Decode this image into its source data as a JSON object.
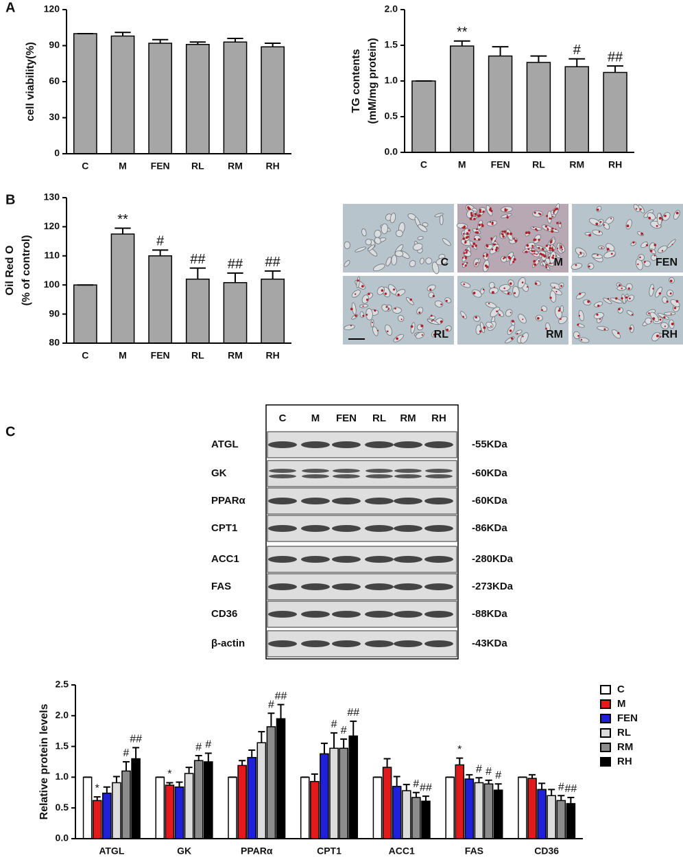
{
  "panels": [
    "A",
    "B",
    "C"
  ],
  "chart_data": [
    {
      "type": "bar",
      "ylabel": [
        "cell viability(%)"
      ],
      "categories": [
        "C",
        "M",
        "FEN",
        "RL",
        "RM",
        "RH"
      ],
      "values": [
        100,
        98,
        92,
        91,
        93,
        89
      ],
      "errors": [
        0,
        3,
        3,
        2,
        3,
        3
      ],
      "color": "#a6a6a6",
      "ylim": [
        0,
        120
      ],
      "yticks": [
        0,
        30,
        60,
        90,
        120
      ]
    },
    {
      "type": "bar",
      "ylabel": [
        "TG contents",
        "(mM/mg protein)"
      ],
      "categories": [
        "C",
        "M",
        "FEN",
        "RL",
        "RM",
        "RH"
      ],
      "values": [
        1.0,
        1.49,
        1.35,
        1.26,
        1.2,
        1.12
      ],
      "errors": [
        0,
        0.07,
        0.13,
        0.09,
        0.11,
        0.09
      ],
      "significance": [
        null,
        "**",
        null,
        null,
        "#",
        "##"
      ],
      "color": "#a6a6a6",
      "ylim": [
        0,
        2
      ],
      "yticks": [
        {
          "value": 0,
          "label": "0.0"
        },
        0.5,
        {
          "value": 1,
          "label": "1.0"
        },
        1.5,
        {
          "value": 2,
          "label": "2.0"
        }
      ]
    },
    {
      "type": "bar",
      "ylabel": [
        "Oil Red O",
        "(% of control)"
      ],
      "categories": [
        "C",
        "M",
        "FEN",
        "RL",
        "RM",
        "RH"
      ],
      "values": [
        100,
        117.5,
        110,
        102,
        100.8,
        102
      ],
      "errors": [
        0,
        2,
        2,
        3.8,
        3.3,
        2.8
      ],
      "significance": [
        null,
        "**",
        "#",
        "##",
        "##",
        "##"
      ],
      "color": "#a6a6a6",
      "ylim": [
        80,
        130
      ],
      "yticks": [
        80,
        90,
        100,
        110,
        120,
        130
      ]
    },
    {
      "type": "bar",
      "ylabel": [
        "Relative protein levels"
      ],
      "categories": [
        "ATGL",
        "GK",
        "PPARα",
        "CPT1",
        "ACC1",
        "FAS",
        "CD36"
      ],
      "series": [
        {
          "name": "C",
          "color": "#ffffff",
          "values": [
            1,
            1,
            1,
            1,
            1,
            1,
            1
          ],
          "errors": [
            0,
            0,
            0,
            0,
            0,
            0,
            0
          ],
          "significance": [
            null,
            null,
            null,
            null,
            null,
            null,
            null
          ]
        },
        {
          "name": "M",
          "color": "#e31a1c",
          "values": [
            0.62,
            0.87,
            1.19,
            0.93,
            1.16,
            1.2,
            0.98
          ],
          "errors": [
            0.06,
            0.04,
            0.08,
            0.12,
            0.14,
            0.11,
            0.06
          ],
          "significance": [
            "*",
            "*",
            null,
            null,
            null,
            "*",
            null
          ]
        },
        {
          "name": "FEN",
          "color": "#2020d8",
          "values": [
            0.74,
            0.84,
            1.32,
            1.38,
            0.85,
            0.97,
            0.8
          ],
          "errors": [
            0.1,
            0.08,
            0.12,
            0.17,
            0.16,
            0.07,
            0.1
          ],
          "significance": [
            null,
            null,
            null,
            null,
            null,
            null,
            null
          ]
        },
        {
          "name": "RL",
          "color": "#dcdcdc",
          "values": [
            0.91,
            1.06,
            1.56,
            1.47,
            0.78,
            0.91,
            0.7
          ],
          "errors": [
            0.1,
            0.1,
            0.18,
            0.25,
            0.1,
            0.08,
            0.1
          ],
          "significance": [
            null,
            null,
            null,
            "#",
            null,
            "#",
            null
          ]
        },
        {
          "name": "RM",
          "color": "#8c8c8c",
          "values": [
            1.1,
            1.27,
            1.82,
            1.47,
            0.67,
            0.89,
            0.62
          ],
          "errors": [
            0.15,
            0.08,
            0.22,
            0.15,
            0.08,
            0.06,
            0.08
          ],
          "significance": [
            "#",
            "#",
            "#",
            "#",
            "#",
            "#",
            "#"
          ]
        },
        {
          "name": "RH",
          "color": "#000000",
          "values": [
            1.3,
            1.25,
            1.95,
            1.67,
            0.61,
            0.79,
            0.57
          ],
          "errors": [
            0.18,
            0.14,
            0.23,
            0.24,
            0.08,
            0.1,
            0.1
          ],
          "significance": [
            "##",
            "#",
            "##",
            "##",
            "##",
            "#",
            "##"
          ]
        }
      ],
      "ylim": [
        0,
        2.5
      ],
      "yticks": [
        {
          "value": 0,
          "label": "0.0"
        },
        0.5,
        {
          "value": 1,
          "label": "1.0"
        },
        1.5,
        {
          "value": 2,
          "label": "2.0"
        },
        2.5
      ]
    }
  ],
  "micrographs": {
    "labels": [
      "C",
      "M",
      "FEN",
      "RL",
      "RM",
      "RH"
    ]
  },
  "western_blot": {
    "lanes": [
      "C",
      "M",
      "FEN",
      "RL",
      "RM",
      "RH"
    ],
    "proteins": [
      "ATGL",
      "GK",
      "PPARα",
      "CPT1",
      "ACC1",
      "FAS",
      "CD36",
      "β-actin"
    ],
    "sizes": [
      "-55KDa",
      "-60KDa",
      "-60KDa",
      "-86KDa",
      "-280KDa",
      "-273KDa",
      "-88KDa",
      "-43KDa"
    ]
  }
}
